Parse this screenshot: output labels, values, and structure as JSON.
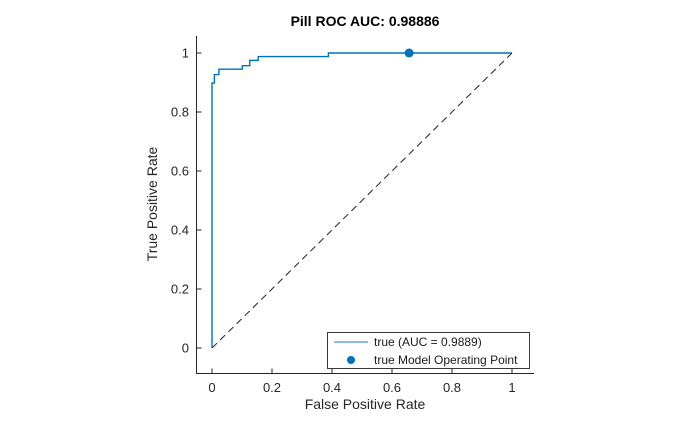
{
  "chart_data": {
    "type": "line",
    "title": "Pill ROC AUC: 0.98886",
    "xlabel": "False Positive Rate",
    "ylabel": "True Positive Rate",
    "xticks": [
      "0",
      "0.2",
      "0.4",
      "0.6",
      "0.8",
      "1"
    ],
    "yticks": [
      "0",
      "0.2",
      "0.4",
      "0.6",
      "0.8",
      "1"
    ],
    "xlim": [
      -0.052,
      1.075
    ],
    "ylim": [
      -0.086,
      1.06
    ],
    "grid": false,
    "background": "#ffffff",
    "axis_color": "#262626",
    "series": [
      {
        "name": "true (AUC = 0.9889)",
        "kind": "roc-step-curve",
        "color": "#0072bd",
        "points": [
          [
            0,
            0
          ],
          [
            0,
            0.898
          ],
          [
            0.008,
            0.898
          ],
          [
            0.008,
            0.927
          ],
          [
            0.023,
            0.927
          ],
          [
            0.023,
            0.945
          ],
          [
            0.101,
            0.945
          ],
          [
            0.101,
            0.957
          ],
          [
            0.126,
            0.957
          ],
          [
            0.126,
            0.975
          ],
          [
            0.154,
            0.975
          ],
          [
            0.154,
            0.988
          ],
          [
            0.388,
            0.988
          ],
          [
            0.388,
            1
          ],
          [
            1,
            1
          ]
        ]
      },
      {
        "name": "chance-diagonal-reference",
        "kind": "dashed-reference-line",
        "color": "#333333",
        "points": [
          [
            0,
            0
          ],
          [
            1,
            1
          ]
        ]
      },
      {
        "name": "true Model Operating Point",
        "kind": "scatter-marker",
        "color": "#0072bd",
        "points": [
          [
            0.657,
            1
          ]
        ]
      }
    ],
    "legend": {
      "position": "lower-right-inside",
      "entries": [
        {
          "label": "true (AUC = 0.9889)",
          "marker": "line",
          "color": "#8fbcdf"
        },
        {
          "label": "true Model Operating Point",
          "marker": "dot",
          "color": "#0072bd"
        }
      ]
    }
  }
}
